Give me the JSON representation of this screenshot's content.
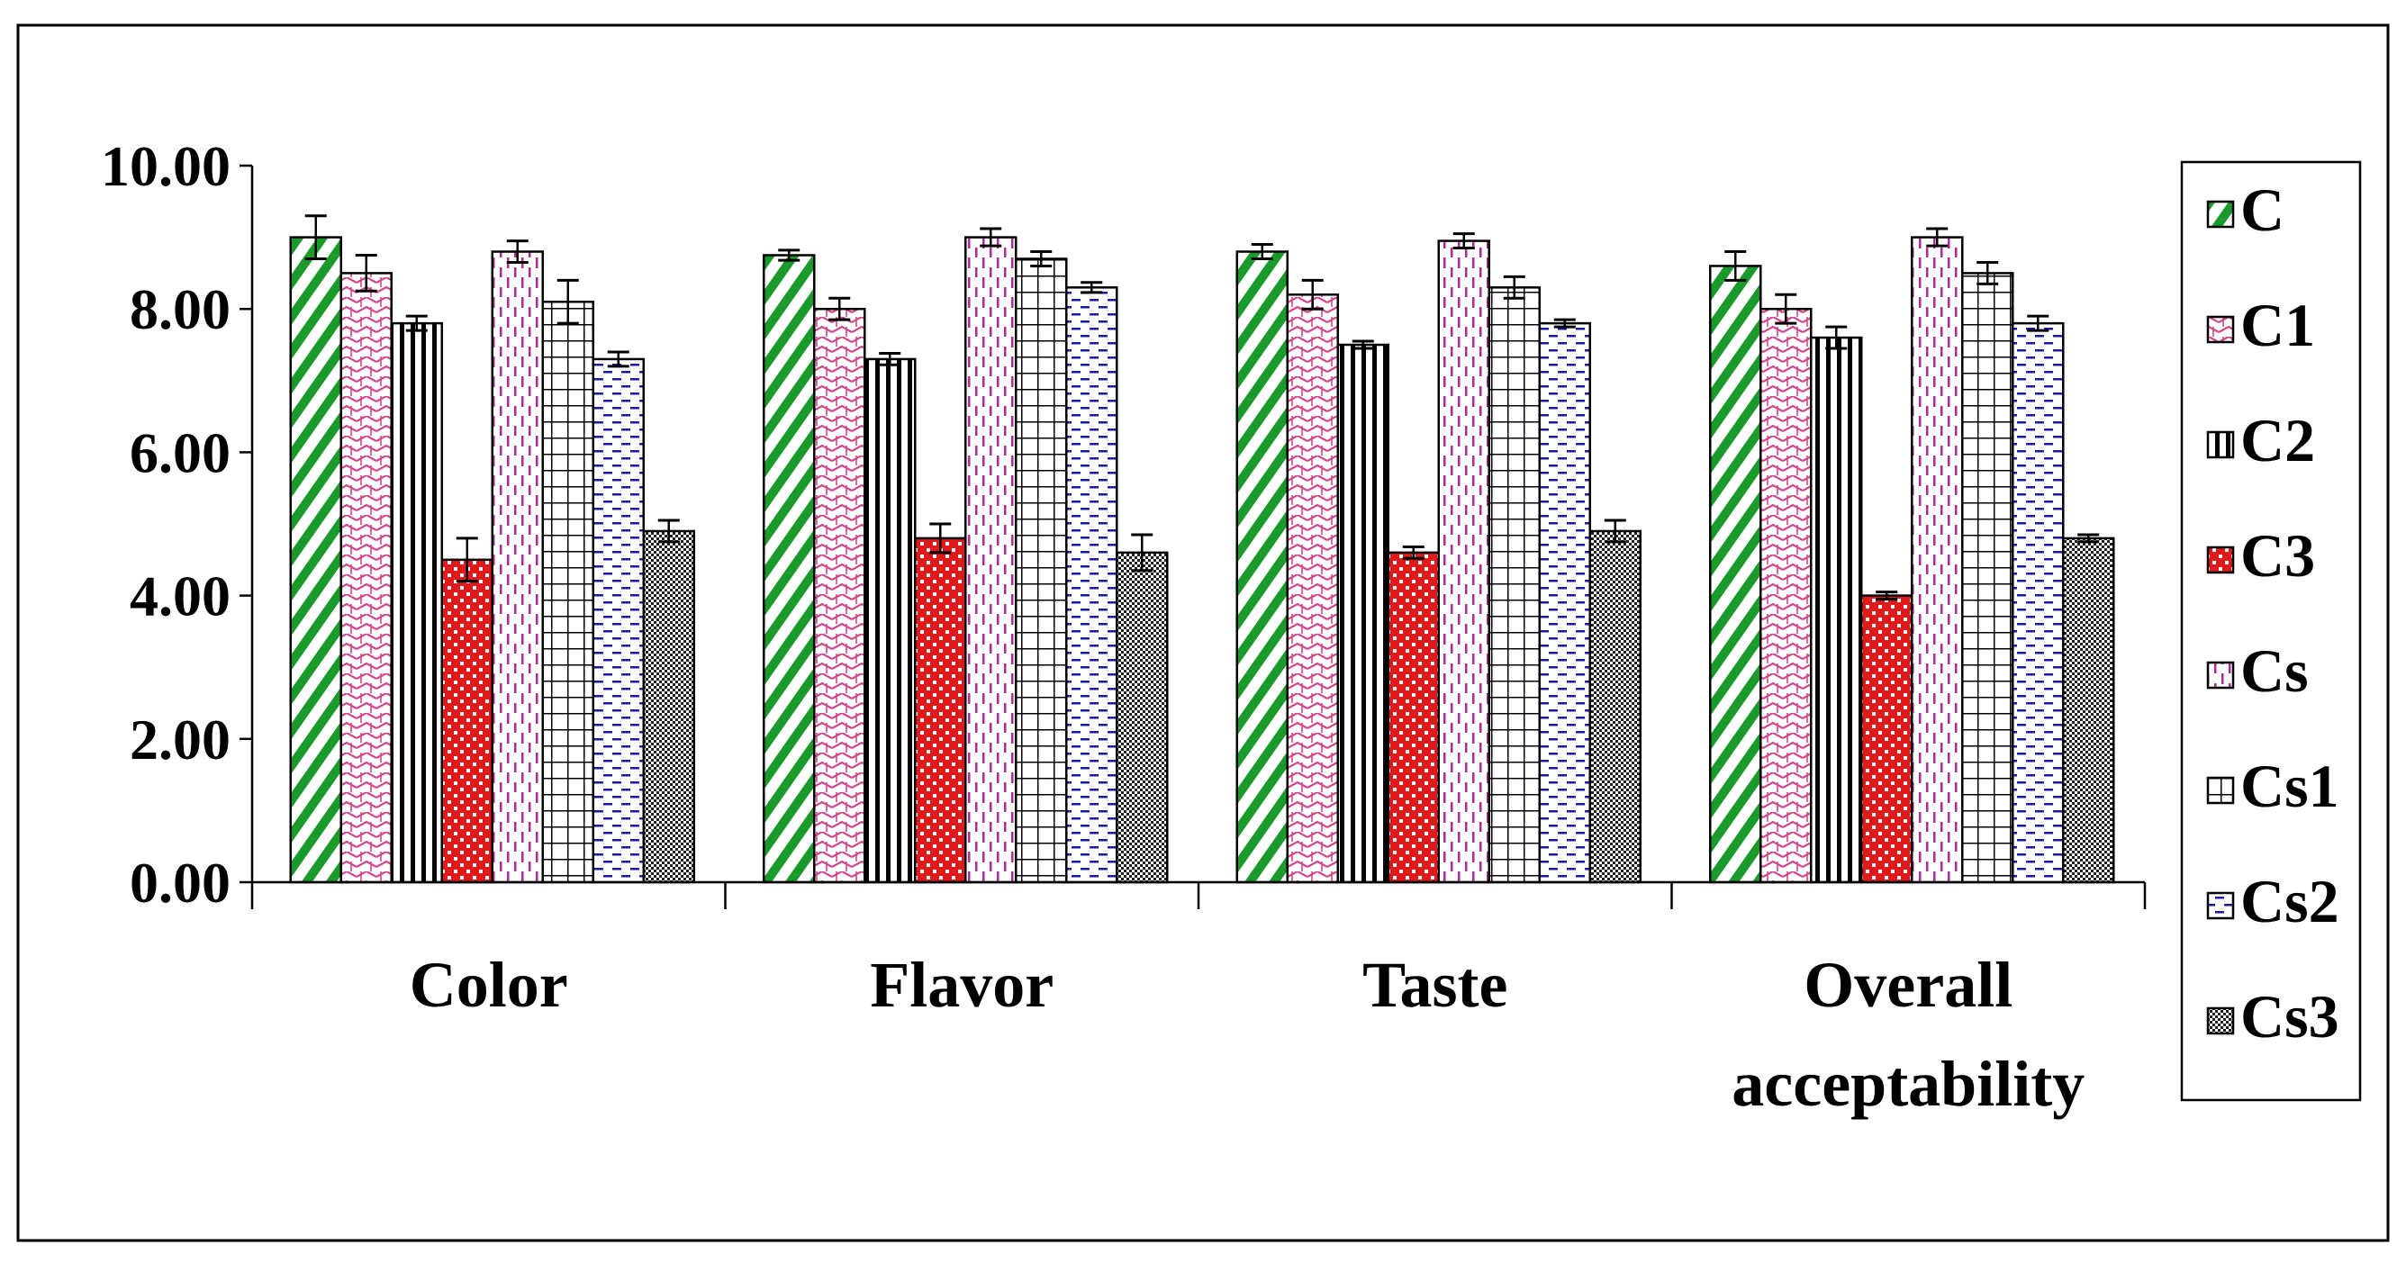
{
  "chart_data": {
    "type": "bar",
    "title": "",
    "xlabel": "",
    "ylabel": "",
    "ylim": [
      0,
      10
    ],
    "yticks": [
      "0.00",
      "2.00",
      "4.00",
      "6.00",
      "8.00",
      "10.00"
    ],
    "categories": [
      [
        "Color"
      ],
      [
        "Flavor"
      ],
      [
        "Taste"
      ],
      [
        "Overall",
        "acceptability"
      ]
    ],
    "legend_position": "right",
    "series": [
      {
        "name": "C",
        "color": "#1a9a2a",
        "pattern": "diag-stripe",
        "values": [
          9.0,
          8.75,
          8.8,
          8.6
        ],
        "errors": [
          0.3,
          0.07,
          0.1,
          0.2
        ]
      },
      {
        "name": "C1",
        "color": "#d2468c",
        "pattern": "zigzag",
        "values": [
          8.5,
          8.0,
          8.2,
          8.0
        ],
        "errors": [
          0.25,
          0.15,
          0.2,
          0.2
        ]
      },
      {
        "name": "C2",
        "color": "#000000",
        "pattern": "vert-stripe",
        "values": [
          7.8,
          7.3,
          7.5,
          7.6
        ],
        "errors": [
          0.1,
          0.08,
          0.05,
          0.15
        ]
      },
      {
        "name": "C3",
        "color": "#e01a1a",
        "pattern": "checker",
        "values": [
          4.5,
          4.8,
          4.6,
          4.0
        ],
        "errors": [
          0.3,
          0.2,
          0.08,
          0.05
        ]
      },
      {
        "name": "Cs",
        "color": "#b02a9a",
        "pattern": "dash-vert",
        "values": [
          8.8,
          9.0,
          8.95,
          9.0
        ],
        "errors": [
          0.15,
          0.12,
          0.1,
          0.12
        ]
      },
      {
        "name": "Cs1",
        "color": "#000000",
        "pattern": "grid",
        "values": [
          8.1,
          8.7,
          8.3,
          8.5
        ],
        "errors": [
          0.3,
          0.1,
          0.15,
          0.15
        ]
      },
      {
        "name": "Cs2",
        "color": "#1a1aa0",
        "pattern": "dash-horz",
        "values": [
          7.3,
          8.3,
          7.8,
          7.8
        ],
        "errors": [
          0.1,
          0.07,
          0.05,
          0.1
        ]
      },
      {
        "name": "Cs3",
        "color": "#202020",
        "pattern": "dense-check",
        "values": [
          4.9,
          4.6,
          4.9,
          4.8
        ],
        "errors": [
          0.15,
          0.25,
          0.15,
          0.05
        ]
      }
    ]
  }
}
